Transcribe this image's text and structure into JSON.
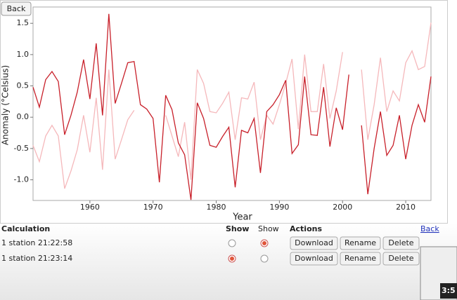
{
  "ui": {
    "back_button": "Back",
    "back_link": "Back",
    "table": {
      "headers": [
        "Calculation",
        "Show",
        "Show",
        "Actions"
      ],
      "rows": [
        {
          "label": "1 station 21:22:58",
          "show": [
            false,
            true
          ]
        },
        {
          "label": "1 station 21:23:14",
          "show": [
            true,
            false
          ]
        }
      ],
      "actions": [
        "Download",
        "Rename",
        "Delete"
      ]
    },
    "overlay_time": "3:5"
  },
  "chart_data": {
    "type": "line",
    "xlabel": "Year",
    "ylabel": "Anomaly (°Celsius)",
    "x": [
      1951,
      1952,
      1953,
      1954,
      1955,
      1956,
      1957,
      1958,
      1959,
      1960,
      1961,
      1962,
      1963,
      1964,
      1965,
      1966,
      1967,
      1968,
      1969,
      1970,
      1971,
      1972,
      1973,
      1974,
      1975,
      1976,
      1977,
      1978,
      1979,
      1980,
      1981,
      1982,
      1983,
      1984,
      1985,
      1986,
      1987,
      1988,
      1989,
      1990,
      1991,
      1992,
      1993,
      1994,
      1995,
      1996,
      1997,
      1998,
      1999,
      2000,
      2001,
      2002,
      2003,
      2004,
      2005,
      2006,
      2007,
      2008,
      2009,
      2010,
      2011,
      2012,
      2013,
      2014
    ],
    "series": [
      {
        "color": "#f5b8bb",
        "values": [
          -0.45,
          -0.71,
          -0.3,
          -0.13,
          -0.3,
          -1.14,
          -0.86,
          -0.52,
          0.03,
          -0.56,
          0.31,
          -0.84,
          0.76,
          -0.67,
          -0.36,
          -0.04,
          0.11,
          null,
          null,
          null,
          null,
          0.03,
          -0.3,
          -0.63,
          -0.08,
          -1.0,
          0.76,
          0.54,
          0.09,
          0.07,
          0.22,
          0.4,
          -0.36,
          0.31,
          0.29,
          0.56,
          -0.36,
          0.03,
          -0.11,
          0.2,
          0.54,
          0.93,
          -0.19,
          1.0,
          0.09,
          0.09,
          0.85,
          -0.02,
          0.42,
          1.04,
          null,
          null,
          0.76,
          -0.36,
          0.2,
          0.95,
          0.09,
          0.42,
          0.26,
          0.87,
          1.06,
          0.76,
          0.81,
          1.51
        ]
      },
      {
        "color": "#c8202a",
        "values": [
          0.48,
          0.16,
          0.6,
          0.73,
          0.57,
          -0.28,
          0.03,
          0.4,
          0.92,
          0.29,
          1.18,
          0.03,
          1.65,
          0.22,
          0.54,
          0.87,
          0.89,
          0.2,
          0.13,
          -0.02,
          -1.04,
          0.35,
          0.12,
          -0.41,
          -0.6,
          -1.32,
          0.23,
          -0.02,
          -0.45,
          -0.48,
          -0.31,
          -0.16,
          -1.12,
          -0.21,
          -0.25,
          -0.02,
          -0.89,
          0.09,
          0.2,
          0.36,
          0.59,
          -0.58,
          -0.44,
          0.65,
          -0.28,
          -0.29,
          0.48,
          -0.47,
          0.15,
          -0.2,
          0.68,
          null,
          -0.13,
          -1.23,
          -0.5,
          0.09,
          -0.61,
          -0.45,
          0.03,
          -0.67,
          -0.13,
          0.2,
          -0.08,
          0.65
        ]
      }
    ],
    "xlim": [
      1951,
      2014
    ],
    "xticks": [
      1960,
      1970,
      1980,
      1990,
      2000,
      2010
    ],
    "ylim": [
      -1.33,
      1.76
    ],
    "yticks": [
      {
        "value": -1.0,
        "label": "-1.0"
      },
      -0.5,
      {
        "value": 0.0,
        "label": "0.0"
      },
      0.5,
      {
        "value": 1.0,
        "label": "1.0"
      },
      1.5
    ]
  }
}
